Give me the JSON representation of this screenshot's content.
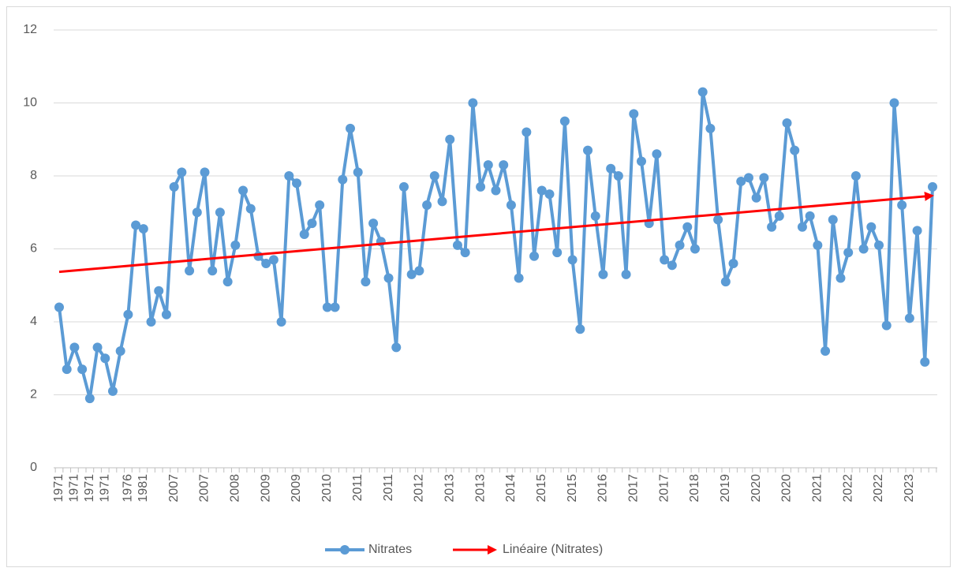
{
  "chart_data": {
    "type": "line",
    "categories": [
      "1971",
      null,
      "1971",
      null,
      "1971",
      null,
      "1971",
      null,
      null,
      "1976",
      null,
      "1981",
      null,
      null,
      null,
      "2007",
      null,
      null,
      null,
      "2007",
      null,
      null,
      null,
      "2008",
      null,
      null,
      null,
      "2009",
      null,
      null,
      null,
      "2009",
      null,
      null,
      null,
      "2010",
      null,
      null,
      null,
      "2011",
      null,
      null,
      null,
      "2011",
      null,
      null,
      null,
      "2012",
      null,
      null,
      null,
      "2013",
      null,
      null,
      null,
      "2013",
      null,
      null,
      null,
      "2014",
      null,
      null,
      null,
      "2015",
      null,
      null,
      null,
      "2015",
      null,
      null,
      null,
      "2016",
      null,
      null,
      null,
      "2017",
      null,
      null,
      null,
      "2017",
      null,
      null,
      null,
      "2018",
      null,
      null,
      null,
      "2019",
      null,
      null,
      null,
      "2020",
      null,
      null,
      null,
      "2020",
      null,
      null,
      null,
      "2021",
      null,
      null,
      null,
      "2022",
      null,
      null,
      null,
      "2022",
      null,
      null,
      null,
      "2023",
      null,
      null,
      null
    ],
    "series": [
      {
        "name": "Nitrates",
        "color": "#5b9bd5",
        "values": [
          4.4,
          2.7,
          3.3,
          2.7,
          1.9,
          3.3,
          3.0,
          2.1,
          3.2,
          4.2,
          6.65,
          6.55,
          4.0,
          4.85,
          4.2,
          7.7,
          8.1,
          5.4,
          7.0,
          8.1,
          5.4,
          7.0,
          5.1,
          6.1,
          7.6,
          7.1,
          5.8,
          5.6,
          5.7,
          4.0,
          8.0,
          7.8,
          6.4,
          6.7,
          7.2,
          4.4,
          4.4,
          7.9,
          9.3,
          8.1,
          5.1,
          6.7,
          6.2,
          5.2,
          3.3,
          7.7,
          5.3,
          5.4,
          7.2,
          8.0,
          7.3,
          9.0,
          6.1,
          5.9,
          10.0,
          7.7,
          8.3,
          7.6,
          8.3,
          7.2,
          5.2,
          9.2,
          5.8,
          7.6,
          7.5,
          5.9,
          9.5,
          5.7,
          3.8,
          8.7,
          6.9,
          5.3,
          8.2,
          8.0,
          5.3,
          9.7,
          8.4,
          6.7,
          8.6,
          5.7,
          5.55,
          6.1,
          6.6,
          6.0,
          10.3,
          9.3,
          6.8,
          5.1,
          5.6,
          7.85,
          7.95,
          7.4,
          7.95,
          6.6,
          6.9,
          9.45,
          8.7,
          6.6,
          6.9,
          6.1,
          3.2,
          6.8,
          5.2,
          5.9,
          8.0,
          6.0,
          6.6,
          6.1,
          3.9,
          10.0,
          7.2,
          4.1,
          6.5,
          2.9,
          7.7
        ]
      }
    ],
    "trendline": {
      "name": "Linéaire (Nitrates)",
      "color": "#ff0000",
      "start": 5.37,
      "end": 7.45
    },
    "ylim": [
      0,
      12
    ],
    "yticks": [
      0,
      2,
      4,
      6,
      8,
      10,
      12
    ],
    "grid": true,
    "legend": "bottom"
  }
}
